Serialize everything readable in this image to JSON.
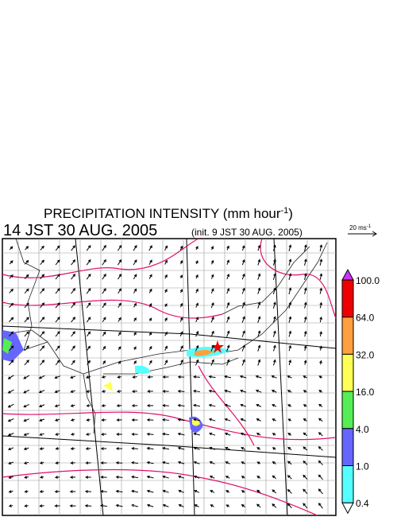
{
  "header": {
    "title": "PRECIPITATION INTENSITY (mm hour",
    "title_exponent": "-1",
    "title_close": ")",
    "valid_time": "14 JST 30 AUG. 2005",
    "init_time": "(init. 9 JST 30 AUG. 2005)"
  },
  "wind_scale": {
    "label": "20 ms",
    "exponent": "-1"
  },
  "colorbar": {
    "labels": [
      "100.0",
      "64.0",
      "32.0",
      "16.0",
      "4.0",
      "1.0",
      "0.4"
    ],
    "colors": [
      "#ee0000",
      "#ffa040",
      "#ffff55",
      "#55ee55",
      "#6666ff",
      "#55ffff"
    ],
    "over_color": "#cc33ff",
    "under_color": "#ffffff"
  }
}
